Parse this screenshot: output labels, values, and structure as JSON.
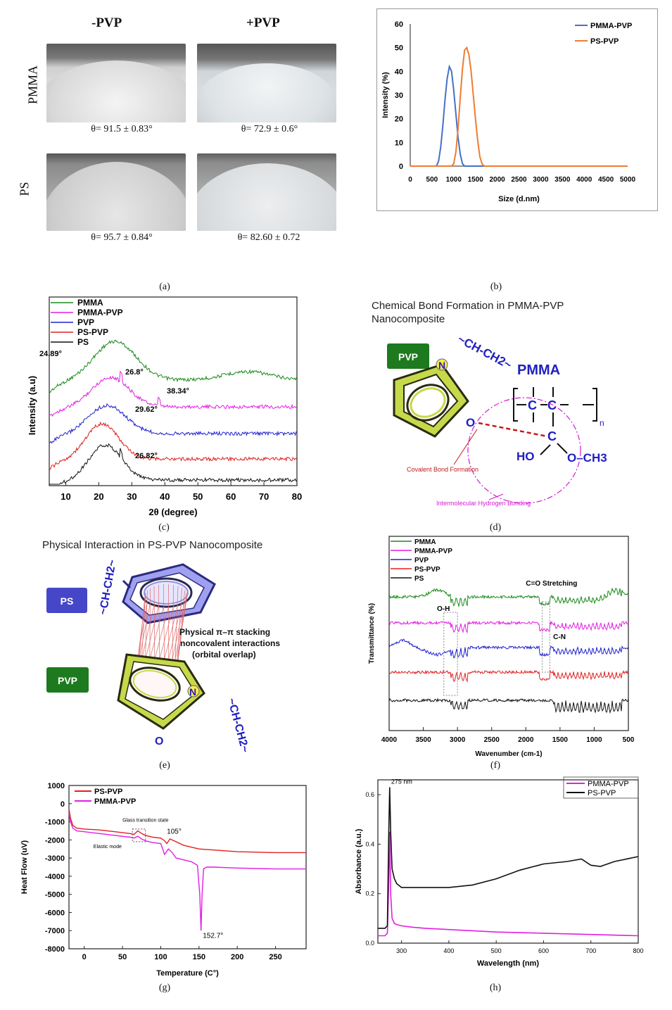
{
  "panel_a": {
    "col_headers": [
      "-PVP",
      "+PVP"
    ],
    "row_labels": [
      "PMMA",
      "PS"
    ],
    "angles": [
      "θ= 91.5 ± 0.83°",
      "θ= 72.9 ± 0.6°",
      "θ= 95.7 ± 0.84°",
      "θ= 82.60 ± 0.72"
    ],
    "caption": "(a)"
  },
  "panel_b": {
    "caption": "(b)"
  },
  "panel_c": {
    "caption": "(c)"
  },
  "panel_d": {
    "title_line1": "Chemical Bond Formation in PMMA-PVP",
    "title_line2": "Nanocomposite",
    "pvp_badge": "PVP",
    "pmma_label": "PMMA",
    "chain_label": "~CH-CH2~",
    "covalent_label": "Covalent Bond Formation",
    "hbond_label": "Intermolecular Hydrogen Bonding",
    "o_label": "O",
    "n_label": "N",
    "c_label": "C",
    "subscript_n": "n",
    "ho_label": "HO",
    "och3_label": "O–CH3",
    "caption": "(d)"
  },
  "panel_e": {
    "title": "Physical Interaction in PS-PVP Nanocomposite",
    "ps_badge": "PS",
    "pvp_badge": "PVP",
    "chain_label": "~CH-CH2~",
    "note_line1": "Physical  π–π stacking",
    "note_line2": "noncovalent interactions",
    "note_line3": "(orbital overlap)",
    "o_label": "O",
    "n_label": "N",
    "caption": "(e)"
  },
  "panel_f": {
    "caption": "(f)"
  },
  "panel_g": {
    "caption": "(g)"
  },
  "panel_h": {
    "caption": "(h)"
  },
  "colors": {
    "blue": "#4472c4",
    "orange": "#ed7d31",
    "green": "#1a8a1a",
    "magenta": "#e21ee2",
    "dblue": "#2020d0",
    "red": "#e02020",
    "black": "#111111",
    "pvp_green": "#1e7a1e",
    "ps_blue": "#4646c8"
  },
  "chart_data": [
    {
      "id": "b",
      "type": "line",
      "xlabel": "Size (d.nm)",
      "ylabel": "Intensity (%)",
      "xlim": [
        0,
        5000
      ],
      "ylim": [
        0,
        60
      ],
      "xticks": [
        0,
        500,
        1000,
        1500,
        2000,
        2500,
        3000,
        3500,
        4000,
        4500,
        5000
      ],
      "yticks": [
        0,
        10,
        20,
        30,
        40,
        50,
        60
      ],
      "legend_position": "top-right",
      "series": [
        {
          "name": "PMMA-PVP",
          "color": "#4472c4",
          "x": [
            0,
            600,
            650,
            700,
            750,
            800,
            850,
            900,
            950,
            1000,
            1050,
            1100,
            1150,
            1200,
            1250,
            1300,
            5000
          ],
          "y": [
            0,
            0,
            2,
            8,
            17,
            28,
            37,
            42,
            40,
            32,
            22,
            12,
            5,
            1,
            0,
            0,
            0
          ]
        },
        {
          "name": "PS-PVP",
          "color": "#ed7d31",
          "x": [
            0,
            950,
            1000,
            1050,
            1100,
            1150,
            1200,
            1250,
            1300,
            1350,
            1400,
            1450,
            1500,
            1550,
            1600,
            1650,
            1700,
            5000
          ],
          "y": [
            0,
            0,
            1,
            6,
            16,
            29,
            41,
            49,
            50,
            47,
            40,
            30,
            20,
            11,
            4,
            1,
            0,
            0
          ]
        }
      ]
    },
    {
      "id": "c",
      "type": "line",
      "xlabel": "2θ (degree)",
      "ylabel": "Intensity (a.u)",
      "xlim": [
        5,
        80
      ],
      "xticks": [
        10,
        20,
        30,
        40,
        50,
        60,
        70,
        80
      ],
      "legend_position": "top-left",
      "series": [
        {
          "name": "PMMA",
          "color": "#1a8a1a"
        },
        {
          "name": "PMMA-PVP",
          "color": "#e21ee2"
        },
        {
          "name": "PVP",
          "color": "#2020d0"
        },
        {
          "name": "PS-PVP",
          "color": "#e02020"
        },
        {
          "name": "PS",
          "color": "#111111"
        }
      ],
      "annotations": [
        "24.89°",
        "26.8°",
        "38.34°",
        "29.62°",
        "26.82°"
      ]
    },
    {
      "id": "f",
      "type": "line",
      "xlabel": "Wavenumber (cm-1)",
      "ylabel": "Transmittance (%)",
      "xlim": [
        4000,
        500
      ],
      "xticks": [
        4000,
        3500,
        3000,
        2500,
        2000,
        1500,
        1000,
        500
      ],
      "legend_position": "top-left",
      "series": [
        {
          "name": "PMMA",
          "color": "#1a8a1a"
        },
        {
          "name": "PMMA-PVP",
          "color": "#e21ee2"
        },
        {
          "name": "PVP",
          "color": "#2020d0"
        },
        {
          "name": "PS-PVP",
          "color": "#e02020"
        },
        {
          "name": "PS",
          "color": "#111111"
        }
      ],
      "annotations": [
        "O-H",
        "C=O Stretching",
        "C-N"
      ]
    },
    {
      "id": "g",
      "type": "line",
      "xlabel": "Temperature (C°)",
      "ylabel": "Heat Flow (uV)",
      "xlim": [
        -20,
        290
      ],
      "ylim": [
        -8000,
        1000
      ],
      "xticks": [
        0,
        50,
        100,
        150,
        200,
        250
      ],
      "yticks": [
        1000,
        0,
        -1000,
        -2000,
        -3000,
        -4000,
        -5000,
        -6000,
        -7000,
        -8000
      ],
      "legend_position": "top-left",
      "series": [
        {
          "name": "PS-PVP",
          "color": "#e02020",
          "x": [
            -20,
            -18,
            -15,
            -10,
            0,
            20,
            40,
            60,
            65,
            70,
            75,
            80,
            85,
            90,
            100,
            105,
            108,
            112,
            120,
            130,
            150,
            200,
            250,
            290
          ],
          "y": [
            -300,
            -800,
            -1200,
            -1350,
            -1400,
            -1450,
            -1550,
            -1650,
            -1700,
            -1500,
            -1650,
            -1750,
            -1800,
            -1850,
            -1900,
            -2050,
            -2200,
            -1950,
            -2100,
            -2300,
            -2500,
            -2650,
            -2700,
            -2700
          ]
        },
        {
          "name": "PMMA-PVP",
          "color": "#e21ee2",
          "x": [
            -20,
            -18,
            -15,
            -10,
            0,
            20,
            40,
            60,
            65,
            70,
            75,
            80,
            85,
            90,
            100,
            105,
            110,
            115,
            120,
            130,
            140,
            148,
            151,
            152.7,
            154,
            156,
            160,
            170,
            200,
            250,
            290
          ],
          "y": [
            -500,
            -1000,
            -1350,
            -1500,
            -1550,
            -1650,
            -1750,
            -1850,
            -1900,
            -1800,
            -1950,
            -2050,
            -2100,
            -2150,
            -2200,
            -2800,
            -2500,
            -2700,
            -3000,
            -3100,
            -3200,
            -3400,
            -5000,
            -7000,
            -5000,
            -3600,
            -3500,
            -3500,
            -3550,
            -3600,
            -3600
          ]
        }
      ],
      "annotations": [
        "Glass transition state",
        "Elastic mode",
        "105°",
        "152.7°"
      ]
    },
    {
      "id": "h",
      "type": "line",
      "xlabel": "Wavelength (nm)",
      "ylabel": "Absorbance (a.u.)",
      "xlim": [
        250,
        800
      ],
      "ylim": [
        0,
        0.66
      ],
      "xticks": [
        300,
        400,
        500,
        600,
        700,
        800
      ],
      "yticks": [
        0.0,
        0.2,
        0.4,
        0.6
      ],
      "legend_position": "top-right",
      "series": [
        {
          "name": "PMMA-PVP",
          "color": "#e21ee2",
          "x": [
            250,
            265,
            270,
            273,
            275,
            277,
            280,
            285,
            290,
            300,
            320,
            350,
            400,
            500,
            600,
            700,
            800
          ],
          "y": [
            0.03,
            0.03,
            0.04,
            0.25,
            0.45,
            0.2,
            0.1,
            0.08,
            0.075,
            0.07,
            0.065,
            0.06,
            0.055,
            0.045,
            0.04,
            0.035,
            0.03
          ]
        },
        {
          "name": "PS-PVP",
          "color": "#111111",
          "x": [
            250,
            265,
            270,
            273,
            275,
            277,
            280,
            285,
            290,
            300,
            320,
            350,
            400,
            450,
            500,
            550,
            600,
            650,
            680,
            700,
            720,
            750,
            800
          ],
          "y": [
            0.06,
            0.06,
            0.07,
            0.45,
            0.63,
            0.45,
            0.3,
            0.26,
            0.24,
            0.225,
            0.225,
            0.225,
            0.225,
            0.235,
            0.26,
            0.295,
            0.32,
            0.33,
            0.34,
            0.315,
            0.31,
            0.33,
            0.35
          ]
        }
      ],
      "annotations": [
        "275 nm"
      ]
    }
  ]
}
